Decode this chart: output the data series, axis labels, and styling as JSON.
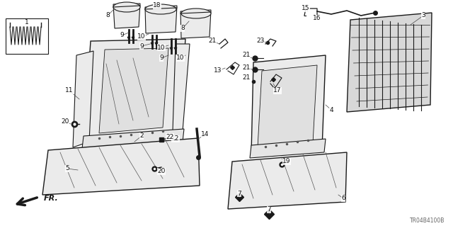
{
  "bg_color": "#ffffff",
  "part_number": "TR04B4100B",
  "fig_w": 6.4,
  "fig_h": 3.19,
  "dpi": 100
}
